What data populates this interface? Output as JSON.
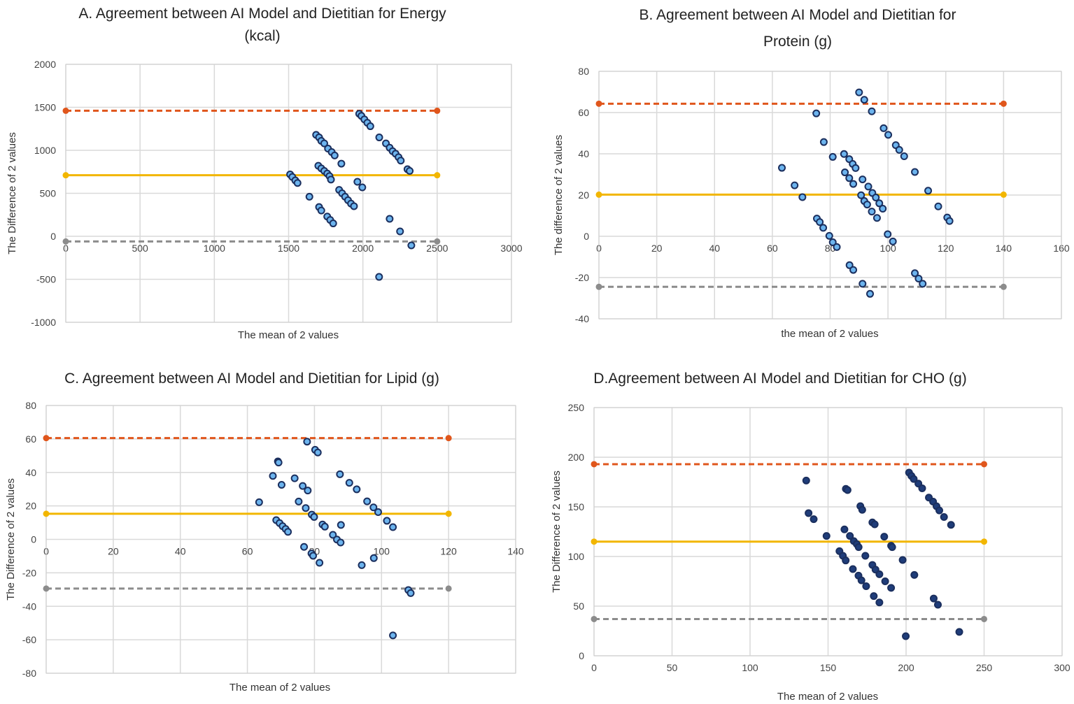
{
  "chart_data": [
    {
      "type": "scatter",
      "title_lines": [
        "A. Agreement between AI Model and Dietitian for Energy",
        "(kcal)"
      ],
      "xlabel": "The mean of 2 values",
      "ylabel": "The Difference of 2 values",
      "xlim": [
        0,
        3000
      ],
      "ylim": [
        -1000,
        2000
      ],
      "xticks": [
        0,
        500,
        1000,
        1500,
        2000,
        2500,
        3000
      ],
      "yticks": [
        -1000,
        -500,
        0,
        500,
        1000,
        1500,
        2000
      ],
      "grid": true,
      "reference_lines": {
        "x_range": [
          0,
          2500
        ],
        "upper_loa": 1460,
        "mean": 710,
        "lower_loa": -60
      },
      "points": [
        [
          1510,
          720
        ],
        [
          1525,
          690
        ],
        [
          1545,
          650
        ],
        [
          1560,
          620
        ],
        [
          1640,
          460
        ],
        [
          1685,
          1180
        ],
        [
          1705,
          1150
        ],
        [
          1720,
          1110
        ],
        [
          1740,
          1080
        ],
        [
          1765,
          1020
        ],
        [
          1790,
          980
        ],
        [
          1810,
          940
        ],
        [
          1855,
          845
        ],
        [
          1700,
          820
        ],
        [
          1720,
          790
        ],
        [
          1740,
          760
        ],
        [
          1760,
          730
        ],
        [
          1775,
          700
        ],
        [
          1785,
          660
        ],
        [
          1840,
          540
        ],
        [
          1860,
          500
        ],
        [
          1880,
          460
        ],
        [
          1900,
          420
        ],
        [
          1920,
          380
        ],
        [
          1940,
          350
        ],
        [
          1705,
          340
        ],
        [
          1720,
          300
        ],
        [
          1760,
          230
        ],
        [
          1780,
          190
        ],
        [
          1800,
          150
        ],
        [
          1963,
          634
        ],
        [
          1996,
          569
        ],
        [
          1975,
          1425
        ],
        [
          1990,
          1400
        ],
        [
          2010,
          1360
        ],
        [
          2030,
          1320
        ],
        [
          2050,
          1280
        ],
        [
          2110,
          1150
        ],
        [
          2155,
          1080
        ],
        [
          2180,
          1030
        ],
        [
          2200,
          990
        ],
        [
          2220,
          960
        ],
        [
          2240,
          920
        ],
        [
          2255,
          880
        ],
        [
          2300,
          780
        ],
        [
          2315,
          760
        ],
        [
          2180,
          203
        ],
        [
          2250,
          57
        ],
        [
          2326,
          -106
        ],
        [
          2109,
          -472
        ]
      ]
    },
    {
      "type": "scatter",
      "title_lines": [
        "B. Agreement between AI Model and Dietitian for",
        "Protein (g)"
      ],
      "xlabel": "the mean of 2 values",
      "ylabel": "The difference of 2 values",
      "xlim": [
        0,
        160
      ],
      "ylim": [
        -40,
        80
      ],
      "xticks": [
        0,
        20,
        40,
        60,
        80,
        100,
        120,
        140,
        160
      ],
      "yticks": [
        -40,
        -20,
        0,
        20,
        40,
        60,
        80
      ],
      "grid": true,
      "reference_lines": {
        "x_range": [
          0,
          140
        ],
        "upper_loa": 64.3,
        "mean": 20.2,
        "lower_loa": -24.5
      },
      "points": [
        [
          90.0,
          69.8
        ],
        [
          91.8,
          66.2
        ],
        [
          94.4,
          60.6
        ],
        [
          75.2,
          59.6
        ],
        [
          77.8,
          45.7
        ],
        [
          80.9,
          38.5
        ],
        [
          63.3,
          33.2
        ],
        [
          67.7,
          24.7
        ],
        [
          70.4,
          19.0
        ],
        [
          98.5,
          52.4
        ],
        [
          100.1,
          49.2
        ],
        [
          102.7,
          44.2
        ],
        [
          103.9,
          41.9
        ],
        [
          105.6,
          38.8
        ],
        [
          109.3,
          31.2
        ],
        [
          113.9,
          22.1
        ],
        [
          117.4,
          14.5
        ],
        [
          120.5,
          9.1
        ],
        [
          121.3,
          7.4
        ],
        [
          84.8,
          39.9
        ],
        [
          86.6,
          37.4
        ],
        [
          87.8,
          35.1
        ],
        [
          88.8,
          33.1
        ],
        [
          85.1,
          31.0
        ],
        [
          86.6,
          28.2
        ],
        [
          88.0,
          25.4
        ],
        [
          91.2,
          27.6
        ],
        [
          93.2,
          24.1
        ],
        [
          94.6,
          21.0
        ],
        [
          95.8,
          18.8
        ],
        [
          97.0,
          16.0
        ],
        [
          98.2,
          13.4
        ],
        [
          90.7,
          19.9
        ],
        [
          91.8,
          17.1
        ],
        [
          92.8,
          15.4
        ],
        [
          94.4,
          12.0
        ],
        [
          96.2,
          8.9
        ],
        [
          75.4,
          8.6
        ],
        [
          76.4,
          6.9
        ],
        [
          77.6,
          4.1
        ],
        [
          79.7,
          0.2
        ],
        [
          80.9,
          -2.9
        ],
        [
          82.3,
          -5.2
        ],
        [
          99.9,
          1.0
        ],
        [
          101.7,
          -2.5
        ],
        [
          86.7,
          -14.0
        ],
        [
          88.0,
          -16.3
        ],
        [
          91.2,
          -23.0
        ],
        [
          93.8,
          -27.9
        ],
        [
          109.3,
          -17.9
        ],
        [
          110.6,
          -20.5
        ],
        [
          112.0,
          -23.0
        ]
      ]
    },
    {
      "type": "scatter",
      "title_lines": [
        "C. Agreement between AI Model and Dietitian for Lipid (g)"
      ],
      "xlabel": "The mean of 2 values",
      "ylabel": "The Difference of 2 values",
      "xlim": [
        0,
        140
      ],
      "ylim": [
        -80,
        80
      ],
      "xticks": [
        0,
        20,
        40,
        60,
        80,
        100,
        120,
        140
      ],
      "yticks": [
        -80,
        -60,
        -40,
        -20,
        0,
        20,
        40,
        60,
        80
      ],
      "grid": true,
      "reference_lines": {
        "x_range": [
          0,
          120
        ],
        "upper_loa": 60.5,
        "mean": 15.3,
        "lower_loa": -29.4
      },
      "points": [
        [
          77.8,
          58.4
        ],
        [
          80.2,
          53.5
        ],
        [
          81.0,
          51.9
        ],
        [
          69.1,
          46.6
        ],
        [
          69.3,
          45.9
        ],
        [
          67.6,
          37.9
        ],
        [
          70.2,
          32.6
        ],
        [
          63.5,
          22.2
        ],
        [
          74.1,
          36.5
        ],
        [
          76.5,
          31.9
        ],
        [
          78.0,
          29.2
        ],
        [
          75.3,
          22.6
        ],
        [
          77.4,
          18.7
        ],
        [
          79.2,
          14.8
        ],
        [
          79.9,
          13.4
        ],
        [
          68.6,
          11.5
        ],
        [
          69.6,
          9.7
        ],
        [
          70.5,
          7.9
        ],
        [
          71.4,
          6.2
        ],
        [
          72.1,
          4.5
        ],
        [
          82.4,
          8.9
        ],
        [
          83.1,
          7.6
        ],
        [
          87.9,
          8.6
        ],
        [
          87.6,
          38.9
        ],
        [
          90.4,
          33.8
        ],
        [
          92.6,
          29.9
        ],
        [
          95.7,
          22.7
        ],
        [
          97.6,
          19.1
        ],
        [
          99.0,
          16.3
        ],
        [
          101.6,
          11.1
        ],
        [
          103.4,
          7.3
        ],
        [
          85.5,
          2.7
        ],
        [
          86.7,
          -0.1
        ],
        [
          87.8,
          -1.9
        ],
        [
          76.9,
          -4.5
        ],
        [
          79.1,
          -8.4
        ],
        [
          79.6,
          -9.8
        ],
        [
          81.5,
          -14.0
        ],
        [
          94.1,
          -15.4
        ],
        [
          97.7,
          -11.2
        ],
        [
          108.0,
          -30.3
        ],
        [
          108.7,
          -32.1
        ],
        [
          103.4,
          -57.4
        ]
      ]
    },
    {
      "type": "scatter",
      "title_lines": [
        "D.Agreement between AI Model and Dietitian for CHO (g)"
      ],
      "xlabel": "The mean of 2 values",
      "ylabel": "The Difference of 2 values",
      "xlim": [
        0,
        300
      ],
      "ylim": [
        0,
        250
      ],
      "xticks": [
        0,
        50,
        100,
        150,
        200,
        250,
        300
      ],
      "yticks": [
        0,
        50,
        100,
        150,
        200,
        250
      ],
      "grid": true,
      "reference_lines": {
        "x_range": [
          0,
          250
        ],
        "upper_loa": 193,
        "mean": 115,
        "lower_loa": 37
      },
      "points": [
        [
          136.0,
          176.5
        ],
        [
          137.5,
          143.7
        ],
        [
          140.8,
          137.6
        ],
        [
          149.0,
          120.7
        ],
        [
          161.4,
          168.1
        ],
        [
          162.5,
          166.9
        ],
        [
          170.7,
          150.7
        ],
        [
          171.9,
          147.0
        ],
        [
          178.4,
          134.3
        ],
        [
          179.9,
          132.4
        ],
        [
          160.5,
          127.3
        ],
        [
          164.0,
          120.7
        ],
        [
          166.5,
          115.5
        ],
        [
          168.4,
          112.5
        ],
        [
          169.6,
          109.4
        ],
        [
          173.9,
          100.7
        ],
        [
          186.0,
          120.0
        ],
        [
          190.4,
          110.8
        ],
        [
          191.1,
          109.4
        ],
        [
          197.8,
          96.5
        ],
        [
          205.3,
          81.4
        ],
        [
          157.3,
          105.4
        ],
        [
          159.5,
          100.7
        ],
        [
          161.3,
          96.0
        ],
        [
          165.9,
          87.3
        ],
        [
          169.5,
          80.7
        ],
        [
          171.4,
          76.0
        ],
        [
          174.4,
          70.1
        ],
        [
          178.4,
          91.5
        ],
        [
          180.4,
          86.8
        ],
        [
          182.9,
          82.1
        ],
        [
          186.6,
          75.0
        ],
        [
          190.4,
          68.4
        ],
        [
          179.3,
          60.1
        ],
        [
          182.9,
          53.7
        ],
        [
          217.7,
          57.7
        ],
        [
          220.4,
          51.4
        ],
        [
          199.8,
          19.7
        ],
        [
          234.1,
          24.0
        ],
        [
          201.9,
          184.5
        ],
        [
          203.4,
          181.2
        ],
        [
          204.9,
          178.1
        ],
        [
          207.9,
          173.4
        ],
        [
          210.3,
          168.7
        ],
        [
          214.6,
          159.3
        ],
        [
          217.3,
          155.3
        ],
        [
          219.5,
          150.6
        ],
        [
          221.3,
          146.4
        ],
        [
          224.3,
          139.8
        ],
        [
          228.8,
          131.9
        ]
      ]
    }
  ],
  "colors": {
    "upper_loa": "#e0561c",
    "mean": "#f2b600",
    "lower_loa": "#8c8c8c",
    "marker_fill": "#6cb4ee",
    "marker_fill_dark": "#1f3d7a",
    "marker_edge": "#1b2f5e",
    "grid": "#d9d9d9"
  }
}
